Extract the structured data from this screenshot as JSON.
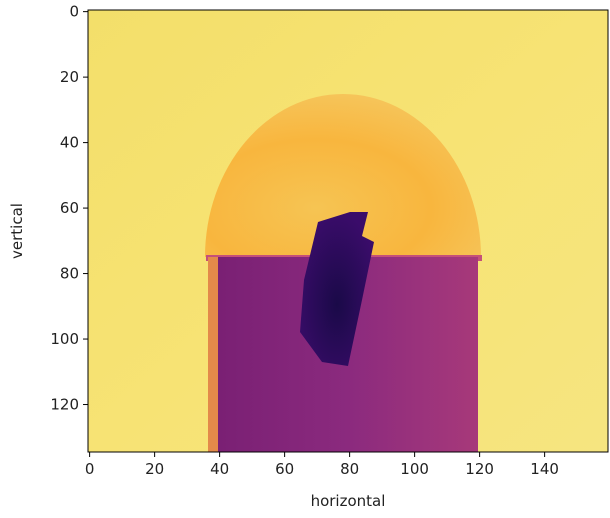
{
  "chart_data": {
    "type": "image",
    "xlabel": "horizontal",
    "ylabel": "vertical",
    "xlim": [
      -0.5,
      159.5
    ],
    "ylim": [
      134.5,
      -0.5
    ],
    "xticks": [
      0,
      20,
      40,
      60,
      80,
      100,
      120,
      140
    ],
    "yticks": [
      0,
      20,
      40,
      60,
      80,
      100,
      120
    ]
  }
}
